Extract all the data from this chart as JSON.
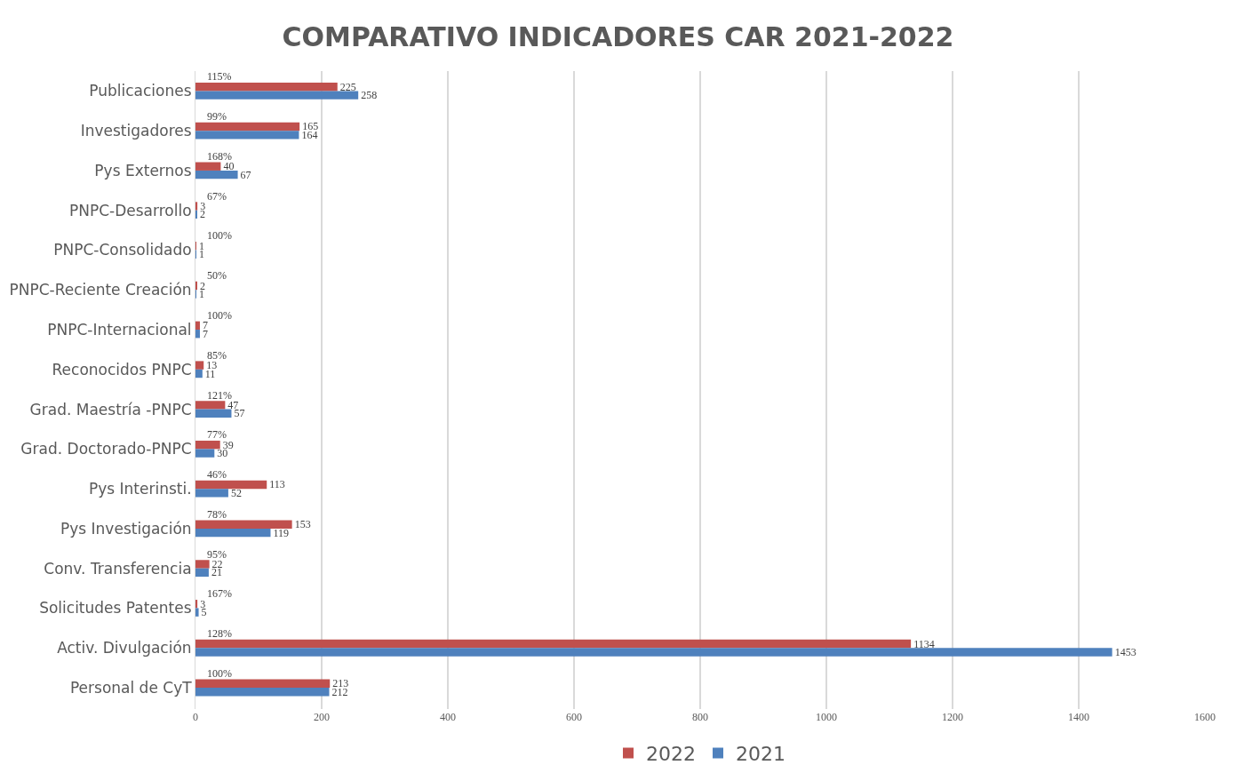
{
  "chart_data": {
    "type": "bar",
    "orientation": "horizontal",
    "title": "COMPARATIVO INDICADORES CAR 2021-2022",
    "categories": [
      "Publicaciones",
      "Investigadores",
      "Pys Externos",
      "PNPC-Desarrollo",
      "PNPC-Consolidado",
      "PNPC-Reciente Creación",
      "PNPC-Internacional",
      "Reconocidos PNPC",
      "Grad. Maestría -PNPC",
      "Grad. Doctorado-PNPC",
      "Pys Interinsti.",
      "Pys Investigación",
      "Conv. Transferencia",
      "Solicitudes Patentes",
      "Activ. Divulgación",
      "Personal de CyT"
    ],
    "series": [
      {
        "name": "2022",
        "color": "#c0504d",
        "values": [
          225,
          165,
          40,
          3,
          1,
          2,
          7,
          13,
          47,
          39,
          113,
          153,
          22,
          3,
          1134,
          213
        ]
      },
      {
        "name": "2021",
        "color": "#4f81bd",
        "values": [
          258,
          164,
          67,
          2,
          1,
          1,
          7,
          11,
          57,
          30,
          52,
          119,
          21,
          5,
          1453,
          212
        ]
      }
    ],
    "annotations": [
      "115%",
      "99%",
      "168%",
      "67%",
      "100%",
      "50%",
      "100%",
      "85%",
      "121%",
      "77%",
      "46%",
      "78%",
      "95%",
      "167%",
      "128%",
      "100%"
    ],
    "xlim": [
      0,
      1600
    ],
    "xticks": [
      0,
      200,
      400,
      600,
      800,
      1000,
      1200,
      1400,
      1600
    ],
    "grid": "x",
    "legend": "bottom",
    "data_labels": true
  }
}
